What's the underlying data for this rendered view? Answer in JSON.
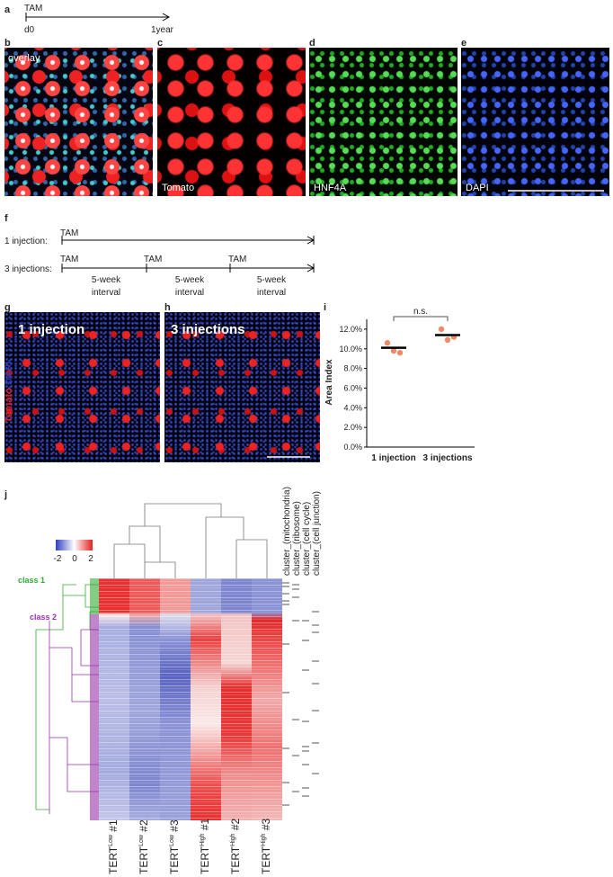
{
  "panel_labels": [
    "a",
    "b",
    "c",
    "d",
    "e",
    "f",
    "g",
    "h",
    "i",
    "j"
  ],
  "timeline": {
    "marker": "TAM",
    "start": "d0",
    "end": "1year"
  },
  "stains": [
    "overlay",
    "Tomato",
    "HNF4A",
    "DAPI"
  ],
  "schedule": {
    "rows": [
      "1 injection:",
      "3 injections:"
    ],
    "marker": "TAM",
    "interval": [
      "5-week",
      "interval"
    ]
  },
  "sections": {
    "left": "1 injection",
    "right": "3 injections",
    "stain": [
      "Tomato",
      "DAPI"
    ]
  },
  "chart_data": {
    "type": "dot",
    "ylabel": "Area Index",
    "categories": [
      "1 injection",
      "3 injections"
    ],
    "points": [
      [
        10.6,
        9.8,
        9.6
      ],
      [
        12.0,
        10.9,
        11.2
      ]
    ],
    "means": [
      10.1,
      11.4
    ],
    "annotation": "n.s.",
    "color": "#f08a66",
    "mean_color": "#000000",
    "ylim": [
      0,
      13
    ],
    "yticks": [
      {
        "value": 0,
        "label": "0.0%"
      },
      {
        "value": 2,
        "label": "2.0%"
      },
      {
        "value": 4,
        "label": "4.0%"
      },
      {
        "value": 6,
        "label": "6.0%"
      },
      {
        "value": 8,
        "label": "8.0%"
      },
      {
        "value": 10,
        "label": "10.0%"
      },
      {
        "value": 12,
        "label": "12.0%"
      }
    ]
  },
  "heatmap": {
    "colorbar_ticks": [
      -2,
      0,
      2
    ],
    "classes": [
      "class 1",
      "class 2"
    ],
    "columns": [
      {
        "base": "TERT",
        "level": "Low",
        "rep": " #1"
      },
      {
        "base": "TERT",
        "level": "Low",
        "rep": " #2"
      },
      {
        "base": "TERT",
        "level": "Low",
        "rep": " #3"
      },
      {
        "base": "TERT",
        "level": "High",
        "rep": " #1"
      },
      {
        "base": "TERT",
        "level": "High",
        "rep": " #2"
      },
      {
        "base": "TERT",
        "level": "High",
        "rep": " #3"
      }
    ],
    "annotations": [
      "cluster_(mitochondria)",
      "cluster_(ribosome)",
      "cluster_(cell cycle)",
      "cluster_(cell junction)"
    ]
  }
}
